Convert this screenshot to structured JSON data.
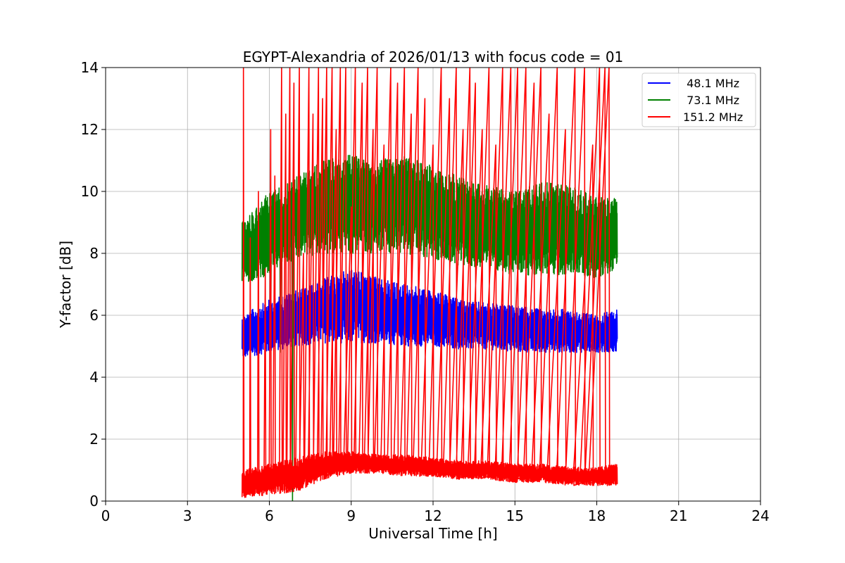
{
  "chart_data": {
    "type": "line",
    "title": "EGYPT-Alexandria of 2026/01/13 with focus code = 01",
    "xlabel": "Universal Time [h]",
    "ylabel": "Y-factor [dB]",
    "xlim": [
      0,
      24
    ],
    "ylim": [
      0,
      14
    ],
    "xticks": [
      0,
      3,
      6,
      9,
      12,
      15,
      18,
      21,
      24
    ],
    "yticks": [
      0,
      2,
      4,
      6,
      8,
      10,
      12,
      14
    ],
    "xtick_labels": [
      "0",
      "3",
      "6",
      "9",
      "12",
      "15",
      "18",
      "21",
      "24"
    ],
    "ytick_labels": [
      "0",
      "2",
      "4",
      "6",
      "8",
      "10",
      "12",
      "14"
    ],
    "grid": true,
    "legend_position": "top-right",
    "time_range_h": [
      5.0,
      18.75
    ],
    "series": [
      {
        "name": " 48.1 MHz",
        "color": "#0000ff",
        "baseline_x": [
          5.0,
          6.0,
          7.0,
          8.0,
          9.0,
          10.0,
          11.0,
          12.0,
          13.0,
          14.0,
          15.0,
          16.0,
          17.0,
          18.0,
          18.75
        ],
        "baseline_low": [
          4.6,
          4.8,
          5.0,
          5.1,
          5.1,
          5.1,
          5.0,
          5.0,
          4.9,
          4.9,
          4.8,
          4.8,
          4.8,
          4.8,
          4.8
        ],
        "baseline_high": [
          6.0,
          6.5,
          6.8,
          7.2,
          7.5,
          7.2,
          7.0,
          6.8,
          6.5,
          6.4,
          6.3,
          6.2,
          6.2,
          6.0,
          6.2
        ]
      },
      {
        "name": " 73.1 MHz",
        "color": "#008000",
        "baseline_x": [
          5.0,
          6.0,
          7.0,
          8.0,
          9.0,
          10.0,
          11.0,
          12.0,
          13.0,
          14.0,
          15.0,
          16.0,
          17.0,
          18.0,
          18.75
        ],
        "baseline_low": [
          7.0,
          7.3,
          7.8,
          8.0,
          8.0,
          8.0,
          8.0,
          7.8,
          7.6,
          7.5,
          7.3,
          7.3,
          7.3,
          7.2,
          7.5
        ],
        "baseline_high": [
          9.0,
          10.0,
          10.5,
          11.0,
          11.2,
          11.0,
          11.2,
          10.8,
          10.5,
          10.2,
          10.0,
          10.3,
          10.2,
          9.8,
          9.8
        ]
      },
      {
        "name": "151.2 MHz",
        "color": "#ff0000",
        "baseline_x": [
          5.0,
          6.0,
          7.0,
          8.0,
          9.0,
          10.0,
          11.0,
          12.0,
          13.0,
          14.0,
          15.0,
          16.0,
          17.0,
          18.0,
          18.75
        ],
        "baseline_low": [
          0.1,
          0.2,
          0.3,
          0.7,
          0.9,
          0.9,
          0.8,
          0.8,
          0.7,
          0.7,
          0.6,
          0.6,
          0.5,
          0.5,
          0.5
        ],
        "baseline_high": [
          1.0,
          1.2,
          1.4,
          1.6,
          1.6,
          1.5,
          1.5,
          1.4,
          1.3,
          1.3,
          1.2,
          1.2,
          1.1,
          1.1,
          1.2
        ],
        "spike_times": [
          5.05,
          5.3,
          5.6,
          5.85,
          6.05,
          6.2,
          6.45,
          6.6,
          6.75,
          6.9,
          7.1,
          7.25,
          7.45,
          7.6,
          7.8,
          7.95,
          8.1,
          8.3,
          8.45,
          8.6,
          8.8,
          9.0,
          9.15,
          9.4,
          9.6,
          9.8,
          9.95,
          10.2,
          10.45,
          10.7,
          10.95,
          11.2,
          11.45,
          11.7,
          12.0,
          12.3,
          12.6,
          12.85,
          13.1,
          13.35,
          13.55,
          13.8,
          14.05,
          14.3,
          14.55,
          14.85,
          15.1,
          15.4,
          15.7,
          15.95,
          16.25,
          16.55,
          16.85,
          17.2,
          17.55,
          17.85,
          18.1,
          18.3,
          18.45
        ],
        "spike_peaks": [
          14.0,
          8.5,
          10.0,
          7.5,
          12.0,
          10.5,
          14.0,
          12.5,
          14.0,
          13.5,
          14.0,
          8.0,
          14.0,
          12.5,
          14.0,
          13.0,
          14.0,
          14.0,
          12.0,
          14.0,
          14.0,
          9.5,
          14.0,
          13.5,
          14.0,
          12.0,
          14.0,
          11.5,
          14.0,
          13.5,
          14.0,
          12.5,
          14.0,
          13.0,
          11.5,
          14.0,
          13.0,
          14.0,
          12.0,
          14.0,
          13.5,
          12.0,
          14.0,
          11.5,
          14.0,
          14.0,
          14.0,
          14.0,
          13.5,
          14.0,
          12.5,
          14.0,
          12.0,
          14.0,
          14.0,
          11.5,
          14.0,
          14.0,
          14.0
        ]
      }
    ]
  }
}
